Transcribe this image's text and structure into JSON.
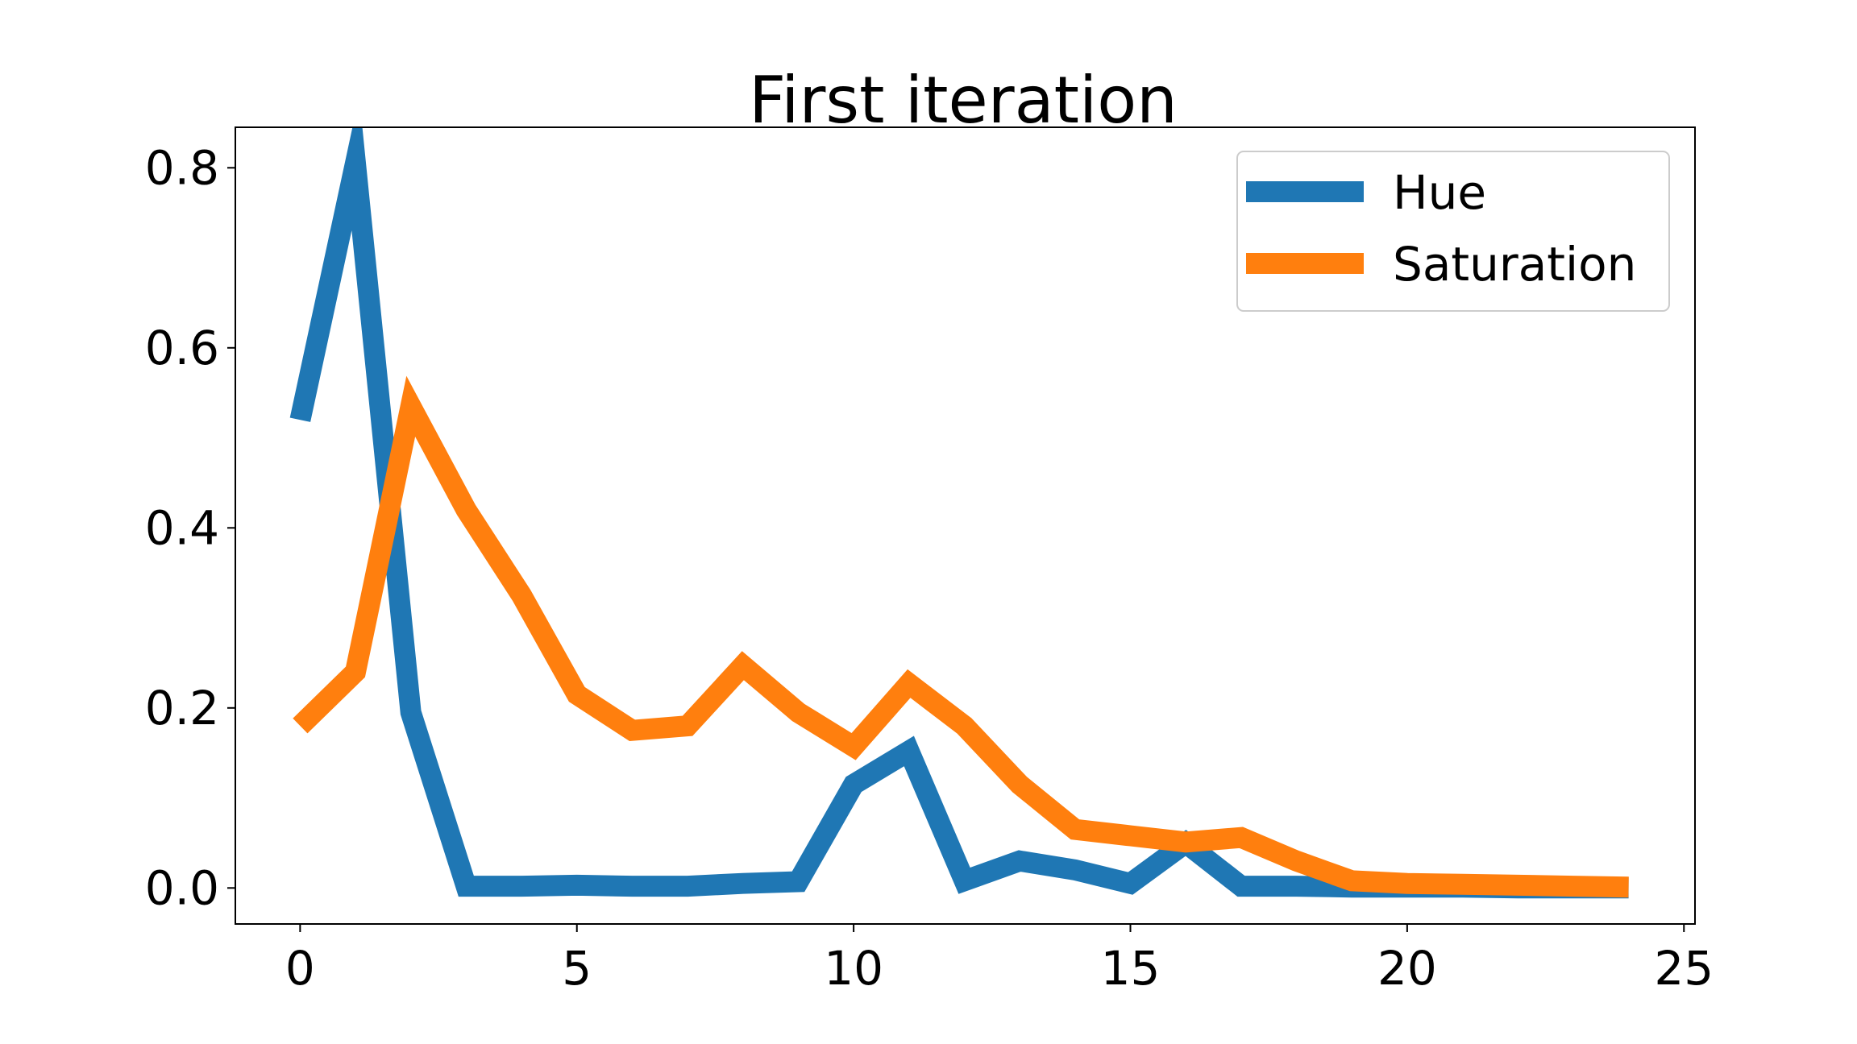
{
  "chart_data": {
    "type": "line",
    "title": "First iteration",
    "xlabel": "",
    "ylabel": "",
    "xlim": [
      -1.17,
      25.2
    ],
    "ylim": [
      -0.04,
      0.845
    ],
    "xticks": [
      "0",
      "5",
      "10",
      "15",
      "20",
      "25"
    ],
    "xtick_values": [
      0,
      5,
      10,
      15,
      20,
      25
    ],
    "yticks": [
      "0.0",
      "0.2",
      "0.4",
      "0.6",
      "0.8"
    ],
    "ytick_values": [
      0.0,
      0.2,
      0.4,
      0.6,
      0.8
    ],
    "grid": false,
    "legend_position": "top-right",
    "x": [
      0,
      1,
      2,
      3,
      4,
      5,
      6,
      7,
      8,
      9,
      10,
      11,
      12,
      13,
      14,
      15,
      16,
      17,
      18,
      19,
      20,
      21,
      22,
      23,
      24
    ],
    "series": [
      {
        "name": "Hue",
        "color": "#1f77b4",
        "values": [
          0.52,
          0.805,
          0.195,
          0.002,
          0.002,
          0.003,
          0.002,
          0.002,
          0.005,
          0.007,
          0.115,
          0.152,
          0.008,
          0.03,
          0.02,
          0.005,
          0.05,
          0.002,
          0.002,
          0.001,
          0.001,
          0.001,
          0.0,
          0.0,
          0.0
        ]
      },
      {
        "name": "Saturation",
        "color": "#ff7f0e",
        "values": [
          0.18,
          0.24,
          0.535,
          0.42,
          0.325,
          0.215,
          0.175,
          0.18,
          0.247,
          0.195,
          0.157,
          0.227,
          0.18,
          0.115,
          0.065,
          0.058,
          0.051,
          0.056,
          0.03,
          0.008,
          0.005,
          0.004,
          0.003,
          0.002,
          0.001
        ]
      }
    ]
  }
}
